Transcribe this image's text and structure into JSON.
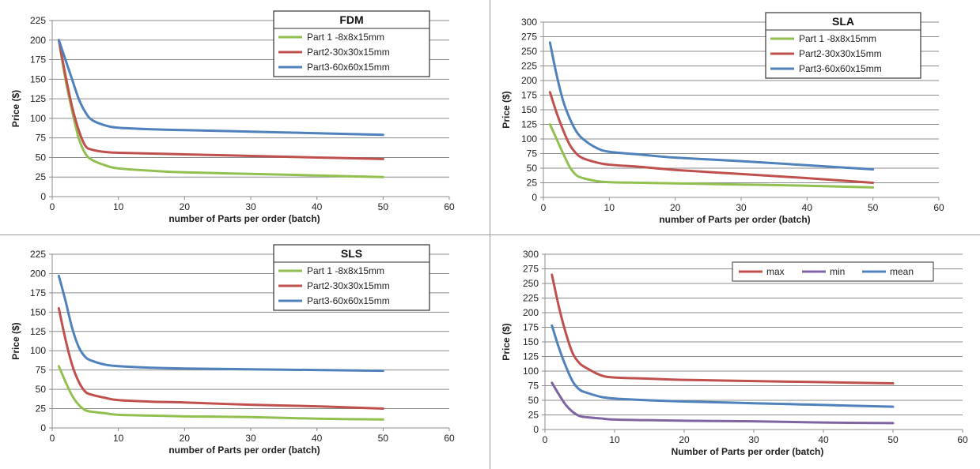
{
  "chart_data": [
    {
      "id": "fdm",
      "type": "line",
      "title": "FDM",
      "xlabel": "number of Parts per order (batch)",
      "ylabel": "Price ($)",
      "xlim": [
        0,
        60
      ],
      "ylim": [
        0,
        225
      ],
      "xticks": [
        0,
        10,
        20,
        30,
        40,
        50,
        60
      ],
      "yticks": [
        0,
        25,
        50,
        75,
        100,
        125,
        150,
        175,
        200,
        225
      ],
      "grid": true,
      "legend_position": "top-right",
      "series": [
        {
          "name": "Part 1 -8x8x15mm",
          "color": "#92c050",
          "x": [
            1,
            2,
            3,
            4,
            5,
            6,
            8,
            10,
            15,
            20,
            30,
            40,
            50
          ],
          "y": [
            200,
            150,
            110,
            75,
            55,
            47,
            40,
            36,
            33,
            31,
            29,
            27,
            25
          ]
        },
        {
          "name": "Part2-30x30x15mm",
          "color": "#c0504d",
          "x": [
            1,
            2,
            3,
            4,
            5,
            6,
            8,
            10,
            15,
            20,
            30,
            40,
            50
          ],
          "y": [
            200,
            155,
            115,
            85,
            65,
            60,
            57,
            56,
            55,
            54,
            52,
            50,
            48
          ]
        },
        {
          "name": "Part3-60x60x15mm",
          "color": "#4f81bd",
          "x": [
            1,
            2,
            3,
            4,
            5,
            6,
            8,
            10,
            15,
            20,
            30,
            40,
            50
          ],
          "y": [
            200,
            175,
            150,
            125,
            108,
            98,
            91,
            88,
            86,
            85,
            83,
            81,
            79
          ]
        }
      ]
    },
    {
      "id": "sla",
      "type": "line",
      "title": "SLA",
      "xlabel": "number of Parts per order (batch)",
      "ylabel": "Price ($)",
      "xlim": [
        0,
        60
      ],
      "ylim": [
        0,
        300
      ],
      "xticks": [
        0,
        10,
        20,
        30,
        40,
        50,
        60
      ],
      "yticks": [
        0,
        25,
        50,
        75,
        100,
        125,
        150,
        175,
        200,
        225,
        250,
        275,
        300
      ],
      "grid": true,
      "legend_position": "top-right",
      "series": [
        {
          "name": "Part 1 -8x8x15mm",
          "color": "#92c050",
          "x": [
            1,
            2,
            3,
            4,
            5,
            6,
            8,
            10,
            15,
            20,
            30,
            40,
            50
          ],
          "y": [
            125,
            100,
            75,
            52,
            38,
            33,
            28,
            26,
            25,
            24,
            22,
            20,
            17
          ]
        },
        {
          "name": "Part2-30x30x15mm",
          "color": "#c0504d",
          "x": [
            1,
            2,
            3,
            4,
            5,
            6,
            8,
            10,
            15,
            20,
            30,
            40,
            50
          ],
          "y": [
            180,
            145,
            115,
            90,
            75,
            67,
            60,
            56,
            52,
            47,
            40,
            33,
            25
          ]
        },
        {
          "name": "Part3-60x60x15mm",
          "color": "#4f81bd",
          "x": [
            1,
            2,
            3,
            4,
            5,
            6,
            8,
            10,
            15,
            20,
            30,
            40,
            50
          ],
          "y": [
            265,
            210,
            165,
            135,
            113,
            100,
            85,
            78,
            73,
            68,
            62,
            55,
            48
          ]
        }
      ]
    },
    {
      "id": "sls",
      "type": "line",
      "title": "SLS",
      "xlabel": "number of Parts per order (batch)",
      "ylabel": "Price ($)",
      "xlim": [
        0,
        60
      ],
      "ylim": [
        0,
        225
      ],
      "xticks": [
        0,
        10,
        20,
        30,
        40,
        50,
        60
      ],
      "yticks": [
        0,
        25,
        50,
        75,
        100,
        125,
        150,
        175,
        200,
        225
      ],
      "grid": true,
      "legend_position": "top-right",
      "series": [
        {
          "name": "Part 1 -8x8x15mm",
          "color": "#92c050",
          "x": [
            1,
            2,
            3,
            4,
            5,
            6,
            8,
            10,
            15,
            20,
            30,
            40,
            50
          ],
          "y": [
            80,
            60,
            42,
            30,
            23,
            21,
            19,
            17,
            16,
            15,
            14,
            12,
            11
          ]
        },
        {
          "name": "Part2-30x30x15mm",
          "color": "#c0504d",
          "x": [
            1,
            2,
            3,
            4,
            5,
            6,
            8,
            10,
            15,
            20,
            30,
            40,
            50
          ],
          "y": [
            155,
            115,
            82,
            60,
            47,
            43,
            39,
            36,
            34,
            33,
            30,
            28,
            25
          ]
        },
        {
          "name": "Part3-60x60x15mm",
          "color": "#4f81bd",
          "x": [
            1,
            2,
            3,
            4,
            5,
            6,
            8,
            10,
            15,
            20,
            30,
            40,
            50
          ],
          "y": [
            197,
            165,
            130,
            105,
            92,
            87,
            82,
            80,
            78,
            77,
            76,
            75,
            74
          ]
        }
      ]
    },
    {
      "id": "summary",
      "type": "line",
      "title": "",
      "xlabel": "Number of Parts per order (batch)",
      "ylabel": "Price ($)",
      "xlim": [
        0,
        60
      ],
      "ylim": [
        0,
        300
      ],
      "xticks": [
        0,
        10,
        20,
        30,
        40,
        50,
        60
      ],
      "yticks": [
        0,
        25,
        50,
        75,
        100,
        125,
        150,
        175,
        200,
        225,
        250,
        275,
        300
      ],
      "grid": true,
      "legend_position": "top-right",
      "series": [
        {
          "name": "max",
          "color": "#c0504d",
          "x": [
            1,
            2,
            3,
            4,
            5,
            6,
            8,
            10,
            15,
            20,
            30,
            40,
            50
          ],
          "y": [
            265,
            210,
            165,
            130,
            113,
            105,
            93,
            89,
            87,
            85,
            83,
            81,
            79
          ]
        },
        {
          "name": "min",
          "color": "#8064a2",
          "x": [
            1,
            2,
            3,
            4,
            5,
            6,
            8,
            10,
            15,
            20,
            30,
            40,
            50
          ],
          "y": [
            80,
            60,
            42,
            30,
            23,
            21,
            19,
            17,
            16,
            15,
            14,
            12,
            11
          ]
        },
        {
          "name": "mean",
          "color": "#4f81bd",
          "x": [
            1,
            2,
            3,
            4,
            5,
            6,
            8,
            10,
            15,
            20,
            30,
            40,
            50
          ],
          "y": [
            178,
            140,
            108,
            82,
            68,
            63,
            56,
            53,
            50,
            48,
            45,
            42,
            39
          ]
        }
      ]
    }
  ]
}
